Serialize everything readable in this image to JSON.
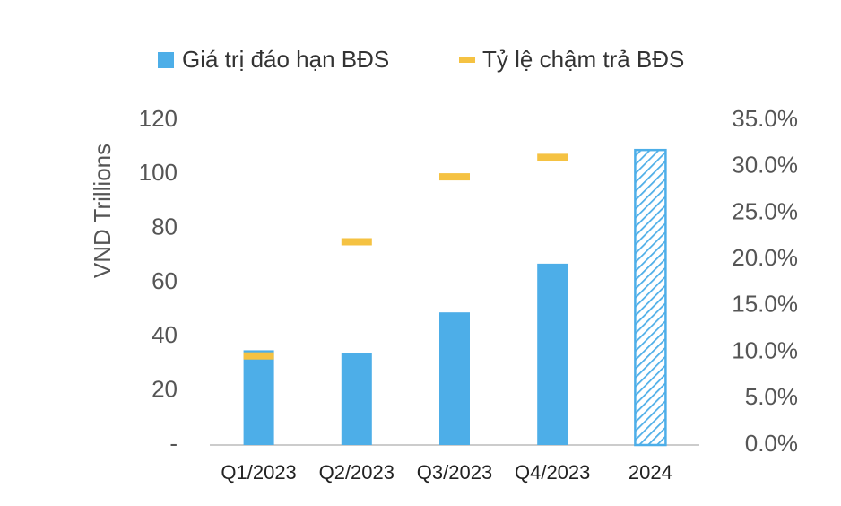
{
  "chart_data": {
    "type": "bar_marker",
    "categories": [
      "Q1/2023",
      "Q2/2023",
      "Q3/2023",
      "Q4/2023",
      "2024"
    ],
    "series": [
      {
        "name": "Giá trị đáo hạn BĐS",
        "color": "#4daee8",
        "values": [
          35,
          34,
          49,
          67,
          109
        ],
        "hatched": [
          false,
          false,
          false,
          false,
          true
        ]
      },
      {
        "name": "Tỷ lệ chậm trả BĐS",
        "color": "#f5c242",
        "axis": "y2",
        "values": [
          9.6,
          21.9,
          28.9,
          31.0,
          null
        ]
      }
    ],
    "ylabel": "VND Trillions",
    "ylim": [
      0,
      120
    ],
    "yticks": [
      {
        "value": 0,
        "label": "-"
      },
      20,
      40,
      60,
      80,
      100,
      120
    ],
    "y2lim": [
      0,
      35
    ],
    "y2ticks": [
      {
        "value": 0,
        "label": "0.0%"
      },
      {
        "value": 5,
        "label": "5.0%"
      },
      {
        "value": 10,
        "label": "10.0%"
      },
      {
        "value": 15,
        "label": "15.0%"
      },
      {
        "value": 20,
        "label": "20.0%"
      },
      {
        "value": 25,
        "label": "25.0%"
      },
      {
        "value": 30,
        "label": "30.0%"
      },
      {
        "value": 35,
        "label": "35.0%"
      }
    ],
    "grid": false
  }
}
